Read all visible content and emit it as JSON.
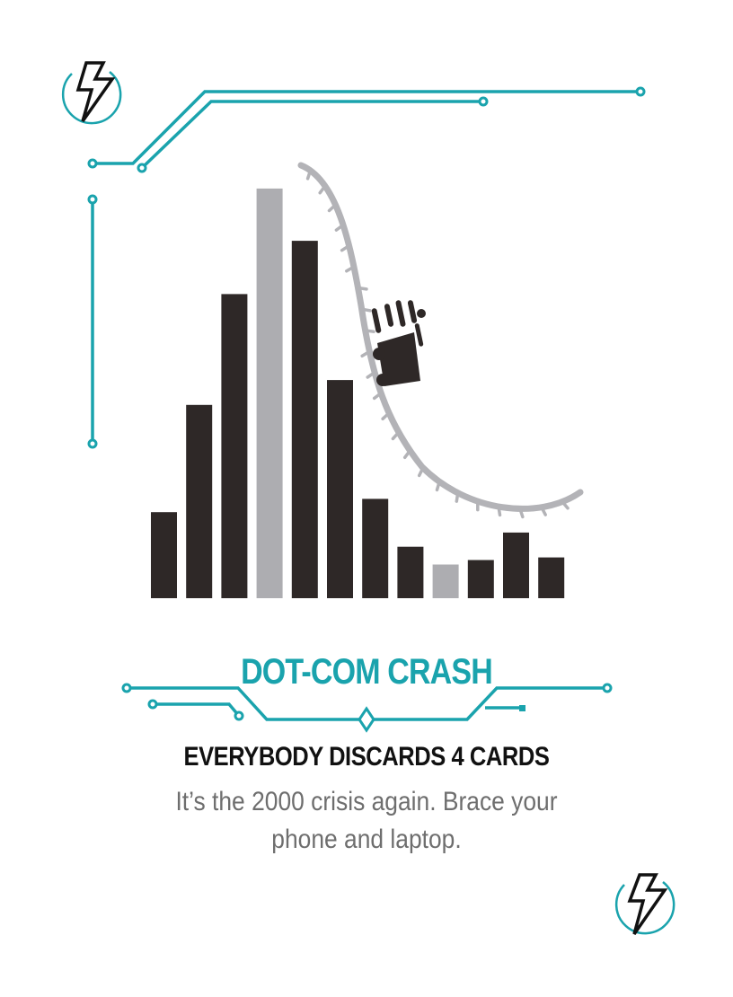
{
  "card": {
    "title": "DOT-COM CRASH",
    "effect": "EVERYBODY DISCARDS 4 CARDS",
    "flavor": "It’s the 2000 crisis again. Brace your phone and laptop."
  },
  "icons": {
    "corner_top_left": "lightning-bolt-icon",
    "corner_bottom_right": "lightning-bolt-icon"
  },
  "colors": {
    "accent": "#1aa3ad",
    "bar_dark": "#2e2827",
    "bar_light": "#adadb1",
    "track": "#b3b3b7",
    "text": "#111111",
    "flavor_text": "#6e6e6e"
  },
  "chart_data": {
    "type": "bar",
    "categories": [
      "",
      "",
      "",
      "",
      "",
      "",
      "",
      "",
      "",
      "",
      "",
      ""
    ],
    "values": [
      97,
      218,
      343,
      462,
      403,
      246,
      112,
      58,
      38,
      43,
      74,
      46
    ],
    "highlighted": [
      false,
      false,
      false,
      true,
      false,
      false,
      false,
      false,
      true,
      false,
      false,
      false
    ],
    "title": "",
    "xlabel": "",
    "ylabel": "",
    "ylim": [
      0,
      470
    ],
    "grid": false
  }
}
